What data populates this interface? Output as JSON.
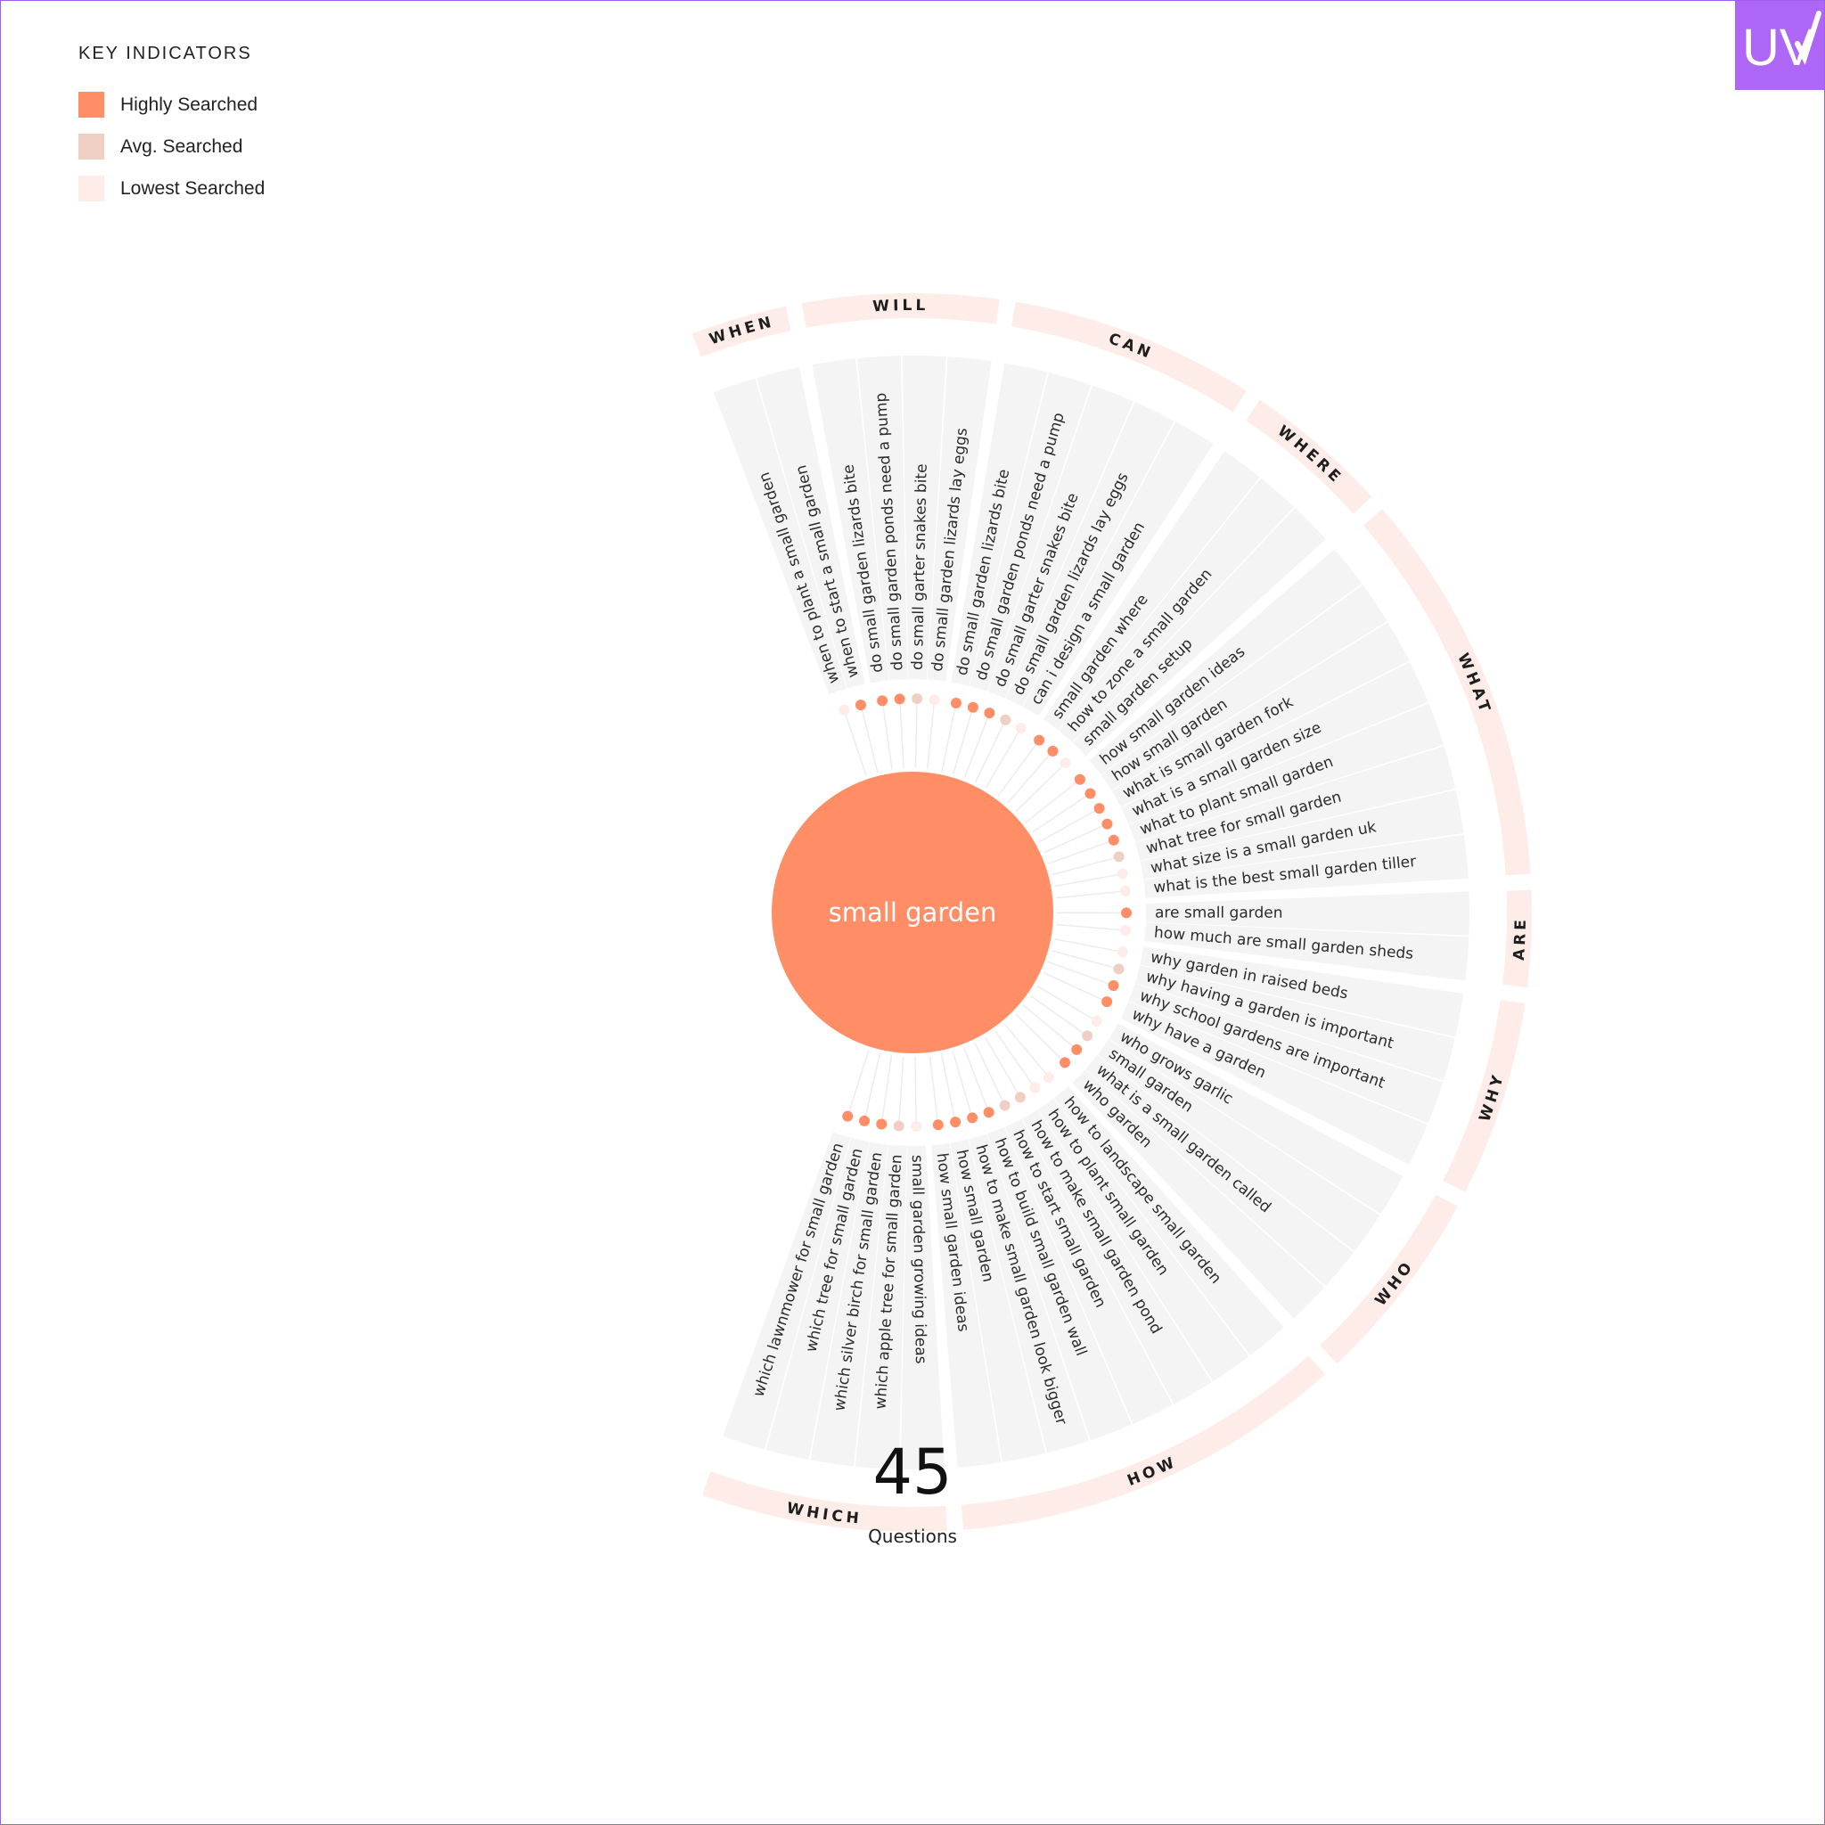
{
  "legend": {
    "title": "KEY INDICATORS",
    "items": [
      {
        "label": "Highly Searched",
        "color": "#ff8e66"
      },
      {
        "label": "Avg. Searched",
        "color": "#efcfc4"
      },
      {
        "label": "Lowest Searched",
        "color": "#fdece8"
      }
    ]
  },
  "logo": {
    "text": "UV",
    "icon": "checkmark-logo-icon",
    "color": "#ad66f5"
  },
  "center": {
    "keyword": "small garden",
    "color": "#ff8e66"
  },
  "total": {
    "count": "45",
    "label": "Questions"
  },
  "categories": [
    {
      "name": "WHEN",
      "questions": [
        {
          "text": "when to plant a small garden",
          "level": "low"
        },
        {
          "text": "when to start a small garden",
          "level": "high"
        }
      ]
    },
    {
      "name": "WILL",
      "questions": [
        {
          "text": "do small garden lizards bite",
          "level": "high"
        },
        {
          "text": "do small garden ponds need a pump",
          "level": "high"
        },
        {
          "text": "do small garter snakes bite",
          "level": "avg"
        },
        {
          "text": "do small garden lizards lay eggs",
          "level": "low"
        }
      ]
    },
    {
      "name": "CAN",
      "questions": [
        {
          "text": "do small garden lizards bite",
          "level": "high"
        },
        {
          "text": "do small garden ponds need a pump",
          "level": "high"
        },
        {
          "text": "do small garter snakes bite",
          "level": "high"
        },
        {
          "text": "do small garden lizards lay eggs",
          "level": "avg"
        },
        {
          "text": "can i design a small garden",
          "level": "low"
        }
      ]
    },
    {
      "name": "WHERE",
      "questions": [
        {
          "text": "small garden where",
          "level": "high"
        },
        {
          "text": "how to zone a small garden",
          "level": "high"
        },
        {
          "text": "small garden setup",
          "level": "low"
        }
      ]
    },
    {
      "name": "WHAT",
      "questions": [
        {
          "text": "how small garden ideas",
          "level": "high"
        },
        {
          "text": "how small garden",
          "level": "high"
        },
        {
          "text": "what is small garden fork",
          "level": "high"
        },
        {
          "text": "what is a small garden size",
          "level": "high"
        },
        {
          "text": "what to plant small garden",
          "level": "high"
        },
        {
          "text": "what tree for small garden",
          "level": "avg"
        },
        {
          "text": "what size is a small garden uk",
          "level": "low"
        },
        {
          "text": "what is the best small garden tiller",
          "level": "low"
        }
      ]
    },
    {
      "name": "ARE",
      "questions": [
        {
          "text": "are small garden",
          "level": "high"
        },
        {
          "text": "how much are small garden sheds",
          "level": "low"
        }
      ]
    },
    {
      "name": "WHY",
      "questions": [
        {
          "text": "why garden in raised beds",
          "level": "low"
        },
        {
          "text": "why having a garden is important",
          "level": "avg"
        },
        {
          "text": "why school gardens are important",
          "level": "high"
        },
        {
          "text": "why have a garden",
          "level": "high"
        }
      ]
    },
    {
      "name": "WHO",
      "questions": [
        {
          "text": "who grows garlic",
          "level": "low"
        },
        {
          "text": "small garden",
          "level": "avg"
        },
        {
          "text": "what is a small garden called",
          "level": "high"
        },
        {
          "text": "who garden",
          "level": "high"
        }
      ]
    },
    {
      "name": "HOW",
      "questions": [
        {
          "text": "how to landscape small garden",
          "level": "low"
        },
        {
          "text": "how to plant small garden",
          "level": "low"
        },
        {
          "text": "how to make small garden pond",
          "level": "avg"
        },
        {
          "text": "how to start small garden",
          "level": "avg"
        },
        {
          "text": "how to build small garden wall",
          "level": "high"
        },
        {
          "text": "how to make small garden look bigger",
          "level": "high"
        },
        {
          "text": "how small garden",
          "level": "high"
        },
        {
          "text": "how small garden ideas",
          "level": "high"
        }
      ]
    },
    {
      "name": "WHICH",
      "questions": [
        {
          "text": "small garden growing ideas",
          "level": "low"
        },
        {
          "text": "which apple tree for small garden",
          "level": "avg"
        },
        {
          "text": "which silver birch for small garden",
          "level": "high"
        },
        {
          "text": "which tree for small garden",
          "level": "high"
        },
        {
          "text": "which lawnmower for small garden",
          "level": "high"
        }
      ]
    }
  ]
}
